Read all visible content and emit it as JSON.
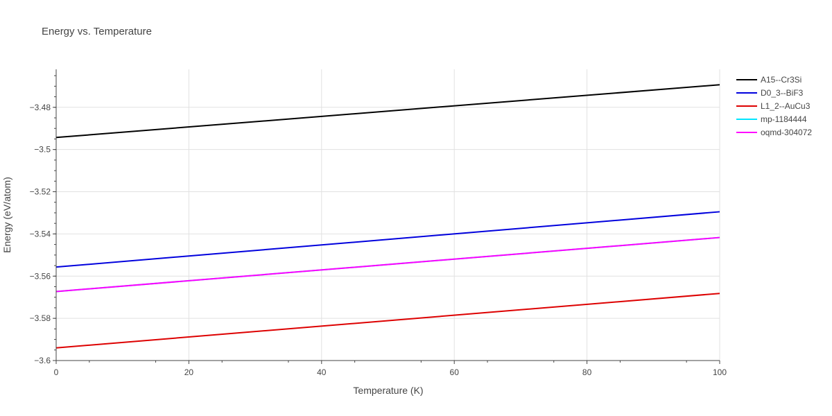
{
  "chart_data": {
    "type": "line",
    "title": "Energy vs. Temperature",
    "xlabel": "Temperature (K)",
    "ylabel": "Energy (eV/atom)",
    "xlim": [
      0,
      100
    ],
    "ylim": [
      -3.6,
      -3.462
    ],
    "x_ticks": [
      0,
      20,
      40,
      60,
      80,
      100
    ],
    "x_tick_labels": [
      "0",
      "20",
      "40",
      "60",
      "80",
      "100"
    ],
    "y_ticks": [
      -3.6,
      -3.58,
      -3.56,
      -3.54,
      -3.52,
      -3.5,
      -3.48
    ],
    "y_tick_labels": [
      "−3.6",
      "−3.58",
      "−3.56",
      "−3.54",
      "−3.52",
      "−3.5",
      "−3.48"
    ],
    "grid": true,
    "legend_position": "top-right",
    "series": [
      {
        "name": "A15--Cr3Si",
        "color": "#000000",
        "x": [
          0,
          100
        ],
        "y": [
          -3.4943,
          -3.4693
        ]
      },
      {
        "name": "D0_3--BiF3",
        "color": "#0000dd",
        "x": [
          0,
          100
        ],
        "y": [
          -3.5557,
          -3.5295
        ]
      },
      {
        "name": "L1_2--AuCu3",
        "color": "#dd0000",
        "x": [
          0,
          100
        ],
        "y": [
          -3.594,
          -3.5682
        ]
      },
      {
        "name": "mp-1184444",
        "color": "#00e5ff",
        "x": [
          0,
          100
        ],
        "y": [
          -3.5673,
          -3.5417
        ]
      },
      {
        "name": "oqmd-304072",
        "color": "#ff00ff",
        "x": [
          0,
          100
        ],
        "y": [
          -3.5673,
          -3.5417
        ]
      }
    ]
  }
}
